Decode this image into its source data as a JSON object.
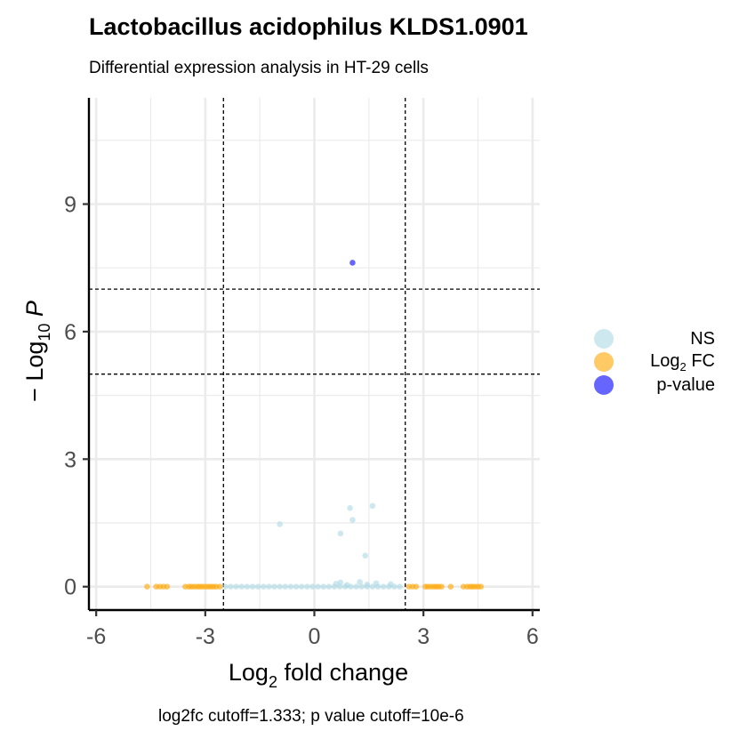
{
  "title": "Lactobacillus acidophilus KLDS1.0901",
  "subtitle": "Differential expression analysis in HT-29 cells",
  "caption": "log2fc cutoff=1.333; p value cutoff=10e-6",
  "chart_data": {
    "type": "scatter",
    "title": "Lactobacillus acidophilus KLDS1.0901",
    "subtitle": "Differential expression analysis in HT-29 cells",
    "xlabel": "Log2 fold change",
    "ylabel": "-Log10 P",
    "xlim": [
      -6.2,
      6.2
    ],
    "ylim": [
      -0.55,
      11.5
    ],
    "xticks": [
      -6,
      -3,
      0,
      3,
      6
    ],
    "yticks": [
      0,
      3,
      6,
      9
    ],
    "grid": true,
    "legend_position": "right",
    "vlines": [
      -2.5,
      2.5
    ],
    "hlines": [
      5,
      7
    ],
    "colors": {
      "NS": "#add8e6",
      "Log2 FC": "#ffa500",
      "p-value": "#0000ff"
    },
    "series": [
      {
        "name": "NS",
        "points": [
          [
            -2.45,
            0
          ],
          [
            -2.3,
            0
          ],
          [
            -2.15,
            0
          ],
          [
            -2.0,
            0
          ],
          [
            -1.85,
            0
          ],
          [
            -1.7,
            0
          ],
          [
            -1.55,
            0
          ],
          [
            -1.4,
            0
          ],
          [
            -1.25,
            0
          ],
          [
            -1.1,
            0
          ],
          [
            -0.95,
            0
          ],
          [
            -0.8,
            0
          ],
          [
            -0.65,
            0
          ],
          [
            -0.5,
            0
          ],
          [
            -0.35,
            0
          ],
          [
            -0.2,
            0
          ],
          [
            -0.05,
            0
          ],
          [
            0.1,
            0
          ],
          [
            0.25,
            0
          ],
          [
            0.4,
            0
          ],
          [
            0.55,
            0
          ],
          [
            0.7,
            0
          ],
          [
            0.85,
            0
          ],
          [
            1.0,
            0
          ],
          [
            1.15,
            0
          ],
          [
            1.3,
            0
          ],
          [
            1.45,
            0
          ],
          [
            1.6,
            0
          ],
          [
            1.75,
            0
          ],
          [
            1.9,
            0
          ],
          [
            2.05,
            0
          ],
          [
            2.2,
            0
          ],
          [
            2.35,
            0
          ],
          [
            0.6,
            0.07
          ],
          [
            0.72,
            0.1
          ],
          [
            0.9,
            0.04
          ],
          [
            1.25,
            0.11
          ],
          [
            1.45,
            0.05
          ],
          [
            1.7,
            0.08
          ],
          [
            2.1,
            0.06
          ],
          [
            -0.95,
            1.47
          ],
          [
            0.72,
            1.25
          ],
          [
            0.98,
            1.85
          ],
          [
            1.05,
            1.57
          ],
          [
            1.6,
            1.9
          ],
          [
            1.4,
            0.73
          ]
        ]
      },
      {
        "name": "Log2 FC",
        "points": [
          [
            -4.6,
            0
          ],
          [
            -4.35,
            0
          ],
          [
            -4.25,
            0
          ],
          [
            -4.15,
            0
          ],
          [
            -4.05,
            0
          ],
          [
            -3.55,
            0
          ],
          [
            -3.45,
            0
          ],
          [
            -3.38,
            0
          ],
          [
            -3.3,
            0
          ],
          [
            -3.22,
            0
          ],
          [
            -3.15,
            0
          ],
          [
            -3.08,
            0
          ],
          [
            -3.0,
            0
          ],
          [
            -2.92,
            0
          ],
          [
            -2.85,
            0
          ],
          [
            -2.78,
            0
          ],
          [
            -2.7,
            0
          ],
          [
            -2.6,
            0
          ],
          [
            2.6,
            0
          ],
          [
            2.7,
            0
          ],
          [
            2.8,
            0
          ],
          [
            3.05,
            0
          ],
          [
            3.12,
            0
          ],
          [
            3.2,
            0
          ],
          [
            3.28,
            0
          ],
          [
            3.35,
            0
          ],
          [
            3.42,
            0
          ],
          [
            3.5,
            0
          ],
          [
            3.75,
            0
          ],
          [
            4.1,
            0
          ],
          [
            4.2,
            0
          ],
          [
            4.28,
            0
          ],
          [
            4.35,
            0
          ],
          [
            4.42,
            0
          ],
          [
            4.5,
            0
          ],
          [
            4.58,
            0
          ]
        ]
      },
      {
        "name": "p-value",
        "points": [
          [
            1.05,
            7.62
          ]
        ]
      }
    ]
  },
  "legend": [
    {
      "label_main": "NS",
      "label_sub": "",
      "label_tail": "",
      "color": "#add8e6"
    },
    {
      "label_main": "Log",
      "label_sub": "2",
      "label_tail": " FC",
      "color": "#ffa500"
    },
    {
      "label_main": "p-value",
      "label_sub": "",
      "label_tail": "",
      "color": "#0000ff"
    }
  ]
}
